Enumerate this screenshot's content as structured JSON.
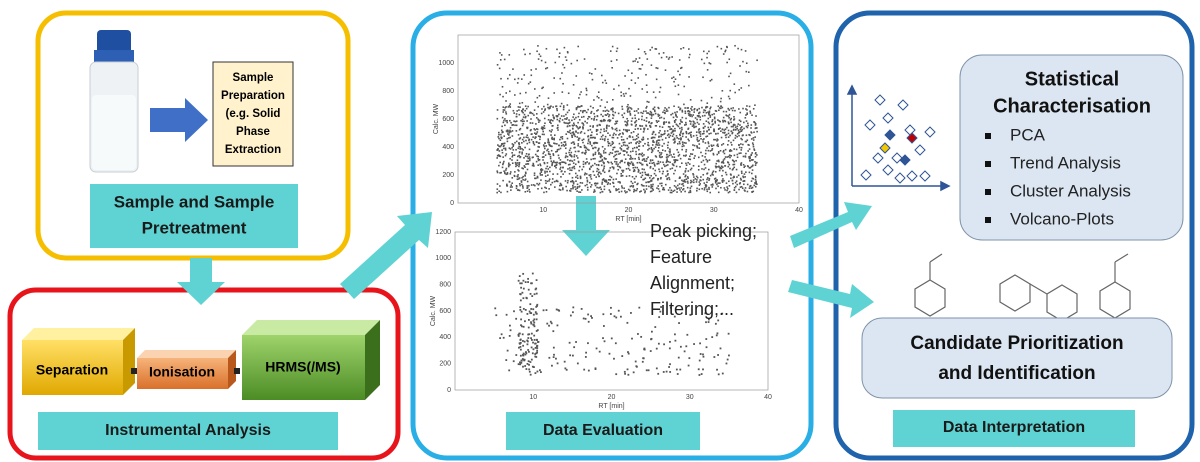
{
  "sample": {
    "prep_lines": [
      "Sample",
      "Preparation",
      "(e.g. Solid",
      "Phase",
      "Extraction"
    ],
    "label_lines": [
      "Sample and Sample",
      "Pretreatment"
    ]
  },
  "instrument": {
    "stages": [
      "Separation",
      "Ionisation",
      "HRMS(/MS)"
    ],
    "label": "Instrumental Analysis"
  },
  "evaluation": {
    "plot1": {
      "ylabel": "Calc. MW",
      "xlabel": "RT [min]",
      "yticks": [
        0,
        200,
        400,
        600,
        800,
        1000
      ],
      "xticks": [
        10,
        20,
        30,
        40
      ]
    },
    "plot2": {
      "ylabel": "Calc. MW",
      "xlabel": "RT [min]",
      "yticks": [
        0,
        200,
        400,
        600,
        800,
        1000,
        1200
      ],
      "xticks": [
        10,
        20,
        30,
        40
      ]
    },
    "steps_lines": [
      "Peak picking;",
      "Feature",
      "Alignment;",
      "Filtering;..."
    ],
    "label": "Data Evaluation"
  },
  "interpretation": {
    "stat_title_lines": [
      "Statistical",
      "Characterisation"
    ],
    "bullets": [
      "PCA",
      "Trend Analysis",
      "Cluster Analysis",
      "Volcano-Plots"
    ],
    "candidate_lines": [
      "Candidate Prioritization",
      "and Identification"
    ],
    "label": "Data Interpretation"
  }
}
